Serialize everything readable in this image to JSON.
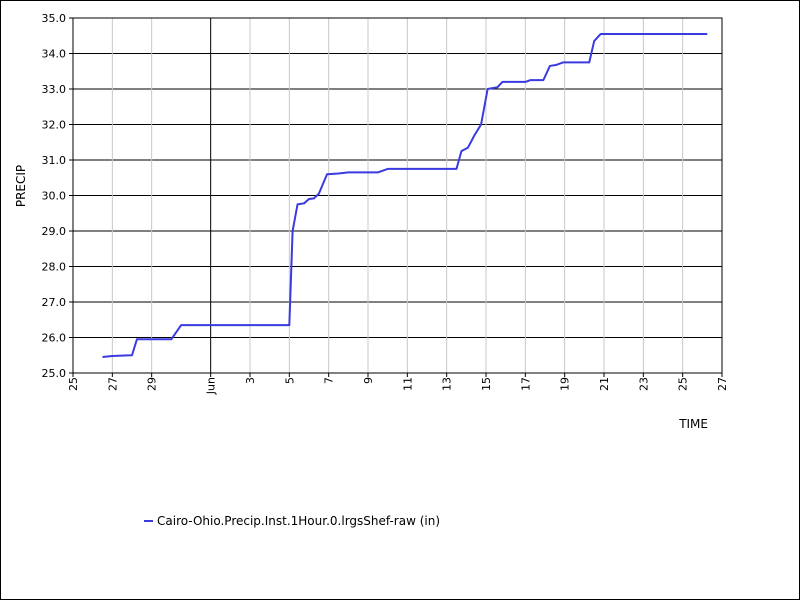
{
  "chart_data": {
    "type": "line",
    "xlabel": "TIME",
    "ylabel": "PRECIP",
    "ylim": [
      25.0,
      35.0
    ],
    "y_ticks": [
      "25.0",
      "26.0",
      "27.0",
      "28.0",
      "29.0",
      "30.0",
      "31.0",
      "32.0",
      "33.0",
      "34.0",
      "35.0"
    ],
    "x_range": [
      "May 25",
      "Jun 27"
    ],
    "x_ticks": [
      {
        "date": "May 25",
        "label": "25"
      },
      {
        "date": "May 27",
        "label": "27"
      },
      {
        "date": "May 29",
        "label": "29"
      },
      {
        "date": "Jun 1",
        "label": "Jun"
      },
      {
        "date": "Jun 3",
        "label": "3"
      },
      {
        "date": "Jun 5",
        "label": "5"
      },
      {
        "date": "Jun 7",
        "label": "7"
      },
      {
        "date": "Jun 9",
        "label": "9"
      },
      {
        "date": "Jun 11",
        "label": "11"
      },
      {
        "date": "Jun 13",
        "label": "13"
      },
      {
        "date": "Jun 15",
        "label": "15"
      },
      {
        "date": "Jun 17",
        "label": "17"
      },
      {
        "date": "Jun 19",
        "label": "19"
      },
      {
        "date": "Jun 21",
        "label": "21"
      },
      {
        "date": "Jun 23",
        "label": "23"
      },
      {
        "date": "Jun 25",
        "label": "25"
      },
      {
        "date": "Jun 27",
        "label": "27"
      }
    ],
    "grid": true,
    "legend_position": "bottom-left",
    "series": [
      {
        "name": "Cairo-Ohio.Precip.Inst.1Hour.0.lrgsShef-raw (in)",
        "color": "#3a3ae0",
        "points": [
          {
            "x": "May 26 12:00",
            "y": 25.45
          },
          {
            "x": "May 27 00:00",
            "y": 25.48
          },
          {
            "x": "May 28 00:00",
            "y": 25.5
          },
          {
            "x": "May 28 06:00",
            "y": 25.95
          },
          {
            "x": "May 30 00:00",
            "y": 25.95
          },
          {
            "x": "May 30 12:00",
            "y": 26.35
          },
          {
            "x": "Jun 5 00:00",
            "y": 26.35
          },
          {
            "x": "Jun 5 04:00",
            "y": 29.0
          },
          {
            "x": "Jun 5 10:00",
            "y": 29.75
          },
          {
            "x": "Jun 5 18:00",
            "y": 29.78
          },
          {
            "x": "Jun 6 00:00",
            "y": 29.9
          },
          {
            "x": "Jun 6 06:00",
            "y": 29.92
          },
          {
            "x": "Jun 6 12:00",
            "y": 30.05
          },
          {
            "x": "Jun 6 22:00",
            "y": 30.6
          },
          {
            "x": "Jun 7 12:00",
            "y": 30.62
          },
          {
            "x": "Jun 8 00:00",
            "y": 30.65
          },
          {
            "x": "Jun 9 12:00",
            "y": 30.65
          },
          {
            "x": "Jun 10 00:00",
            "y": 30.75
          },
          {
            "x": "Jun 13 12:00",
            "y": 30.75
          },
          {
            "x": "Jun 13 18:00",
            "y": 31.25
          },
          {
            "x": "Jun 14 02:00",
            "y": 31.35
          },
          {
            "x": "Jun 14 10:00",
            "y": 31.7
          },
          {
            "x": "Jun 14 18:00",
            "y": 32.0
          },
          {
            "x": "Jun 15 02:00",
            "y": 33.0
          },
          {
            "x": "Jun 15 14:00",
            "y": 33.05
          },
          {
            "x": "Jun 15 20:00",
            "y": 33.2
          },
          {
            "x": "Jun 17 00:00",
            "y": 33.2
          },
          {
            "x": "Jun 17 06:00",
            "y": 33.25
          },
          {
            "x": "Jun 17 22:00",
            "y": 33.25
          },
          {
            "x": "Jun 18 06:00",
            "y": 33.65
          },
          {
            "x": "Jun 18 14:00",
            "y": 33.68
          },
          {
            "x": "Jun 18 22:00",
            "y": 33.75
          },
          {
            "x": "Jun 20 06:00",
            "y": 33.75
          },
          {
            "x": "Jun 20 12:00",
            "y": 34.35
          },
          {
            "x": "Jun 20 20:00",
            "y": 34.55
          },
          {
            "x": "Jun 26 06:00",
            "y": 34.55
          }
        ]
      }
    ]
  }
}
